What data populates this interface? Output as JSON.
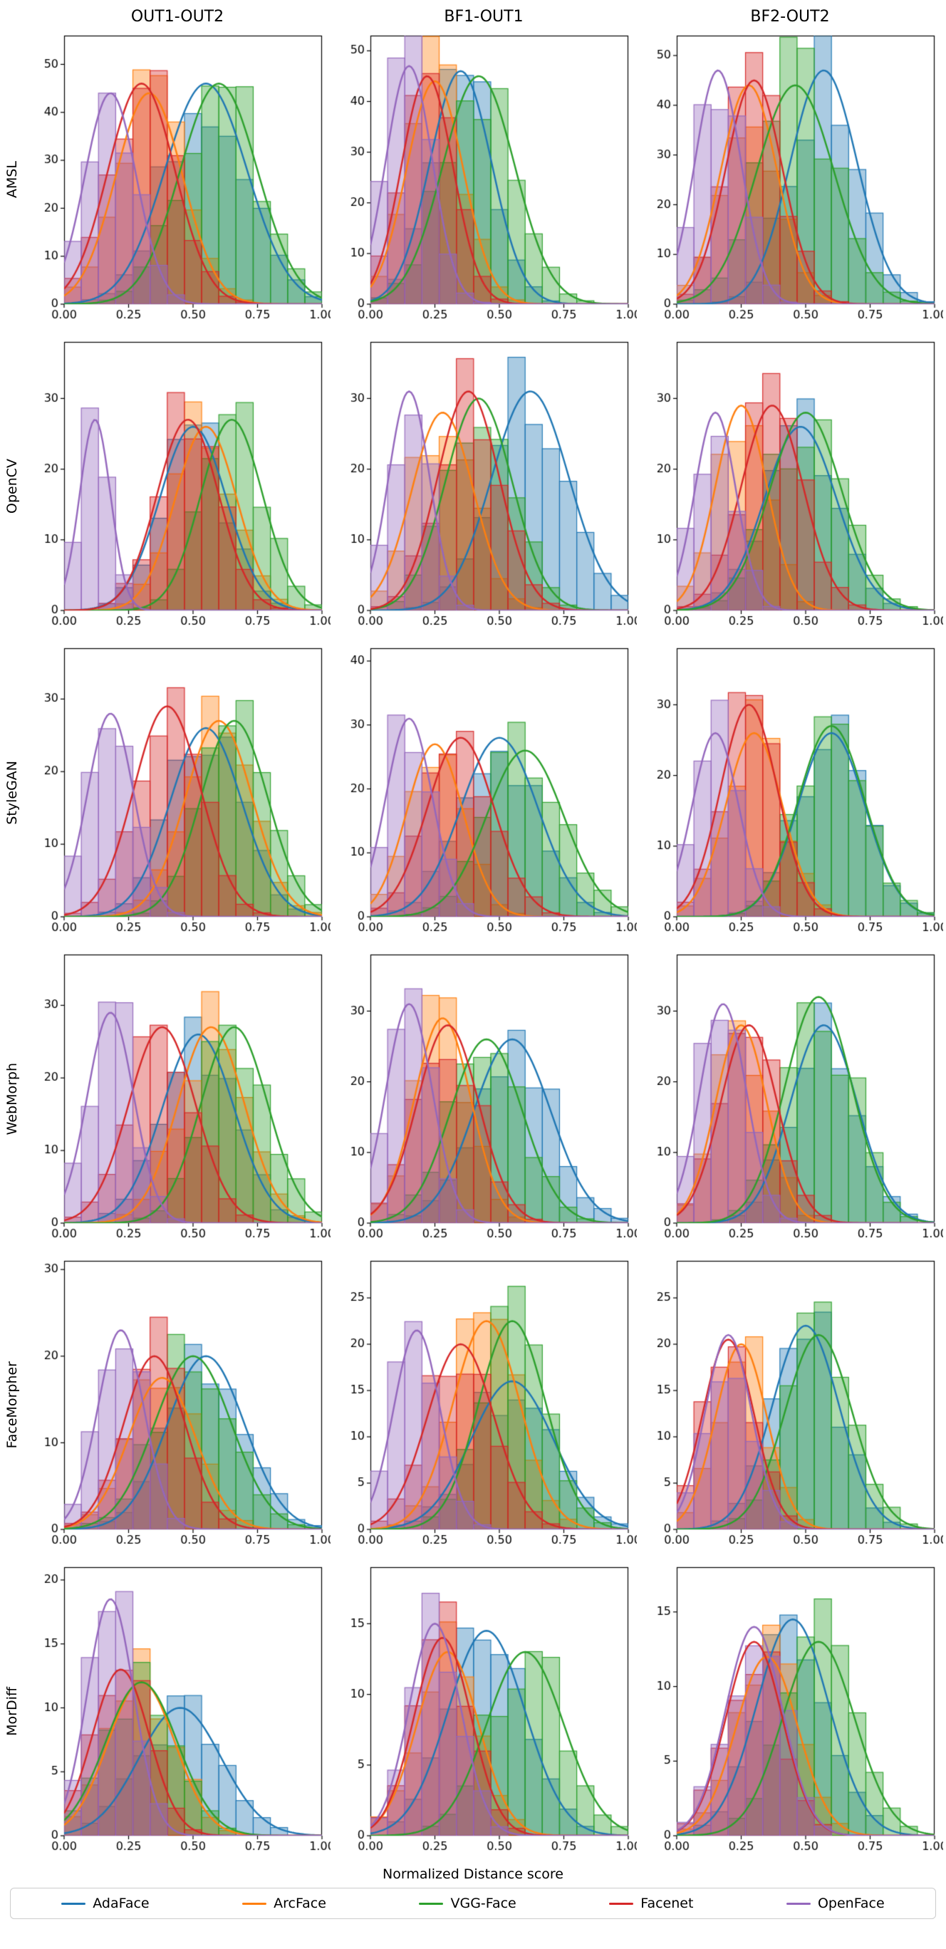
{
  "chart_data": {
    "type": "area",
    "description": "6x3 grid of overlaid histograms with KDE curves comparing face-recognition distance-score distributions",
    "columns": [
      "OUT1-OUT2",
      "BF1-OUT1",
      "BF2-OUT2"
    ],
    "rows": [
      "AMSL",
      "OpenCV",
      "StyleGAN",
      "WebMorph",
      "FaceMorpher",
      "MorDiff"
    ],
    "xlabel": "Normalized Distance score",
    "xticks": [
      "0.00",
      "0.25",
      "0.50",
      "0.75",
      "1.00"
    ],
    "xlim": [
      0,
      1
    ],
    "legend_position": "bottom",
    "legend": [
      {
        "name": "AdaFace",
        "color": "#1f77b4"
      },
      {
        "name": "ArcFace",
        "color": "#ff7f0e"
      },
      {
        "name": "VGG-Face",
        "color": "#2ca02c"
      },
      {
        "name": "Facenet",
        "color": "#d62728"
      },
      {
        "name": "OpenFace",
        "color": "#9467bd"
      }
    ],
    "plots": [
      {
        "row": "AMSL",
        "col": "OUT1-OUT2",
        "ymax": 56,
        "yticks": [
          0,
          10,
          20,
          30,
          40,
          50
        ],
        "series": [
          {
            "name": "AdaFace",
            "mean": 0.55,
            "sd": 0.16,
            "peak": 46
          },
          {
            "name": "ArcFace",
            "mean": 0.33,
            "sd": 0.13,
            "peak": 44
          },
          {
            "name": "VGG-Face",
            "mean": 0.6,
            "sd": 0.15,
            "peak": 46
          },
          {
            "name": "Facenet",
            "mean": 0.3,
            "sd": 0.13,
            "peak": 46
          },
          {
            "name": "OpenFace",
            "mean": 0.18,
            "sd": 0.1,
            "peak": 44
          }
        ]
      },
      {
        "row": "AMSL",
        "col": "BF1-OUT1",
        "ymax": 53,
        "yticks": [
          0,
          10,
          20,
          30,
          40,
          50
        ],
        "series": [
          {
            "name": "AdaFace",
            "mean": 0.35,
            "sd": 0.12,
            "peak": 46
          },
          {
            "name": "ArcFace",
            "mean": 0.25,
            "sd": 0.11,
            "peak": 44
          },
          {
            "name": "VGG-Face",
            "mean": 0.42,
            "sd": 0.14,
            "peak": 45
          },
          {
            "name": "Facenet",
            "mean": 0.22,
            "sd": 0.1,
            "peak": 45
          },
          {
            "name": "OpenFace",
            "mean": 0.15,
            "sd": 0.09,
            "peak": 47
          }
        ]
      },
      {
        "row": "AMSL",
        "col": "BF2-OUT2",
        "ymax": 54,
        "yticks": [
          0,
          10,
          20,
          30,
          40,
          50
        ],
        "series": [
          {
            "name": "AdaFace",
            "mean": 0.57,
            "sd": 0.13,
            "peak": 47
          },
          {
            "name": "ArcFace",
            "mean": 0.28,
            "sd": 0.11,
            "peak": 44
          },
          {
            "name": "VGG-Face",
            "mean": 0.46,
            "sd": 0.15,
            "peak": 44
          },
          {
            "name": "Facenet",
            "mean": 0.3,
            "sd": 0.11,
            "peak": 45
          },
          {
            "name": "OpenFace",
            "mean": 0.16,
            "sd": 0.09,
            "peak": 47
          }
        ]
      },
      {
        "row": "OpenCV",
        "col": "OUT1-OUT2",
        "ymax": 38,
        "yticks": [
          0,
          10,
          20,
          30
        ],
        "series": [
          {
            "name": "AdaFace",
            "mean": 0.5,
            "sd": 0.13,
            "peak": 26
          },
          {
            "name": "ArcFace",
            "mean": 0.55,
            "sd": 0.12,
            "peak": 26
          },
          {
            "name": "VGG-Face",
            "mean": 0.65,
            "sd": 0.12,
            "peak": 27
          },
          {
            "name": "Facenet",
            "mean": 0.48,
            "sd": 0.12,
            "peak": 27
          },
          {
            "name": "OpenFace",
            "mean": 0.12,
            "sd": 0.06,
            "peak": 27
          }
        ]
      },
      {
        "row": "OpenCV",
        "col": "BF1-OUT1",
        "ymax": 38,
        "yticks": [
          0,
          10,
          20,
          30
        ],
        "series": [
          {
            "name": "AdaFace",
            "mean": 0.62,
            "sd": 0.15,
            "peak": 31
          },
          {
            "name": "ArcFace",
            "mean": 0.28,
            "sd": 0.12,
            "peak": 28
          },
          {
            "name": "VGG-Face",
            "mean": 0.42,
            "sd": 0.13,
            "peak": 30
          },
          {
            "name": "Facenet",
            "mean": 0.38,
            "sd": 0.12,
            "peak": 31
          },
          {
            "name": "OpenFace",
            "mean": 0.15,
            "sd": 0.08,
            "peak": 31
          }
        ]
      },
      {
        "row": "OpenCV",
        "col": "BF2-OUT2",
        "ymax": 38,
        "yticks": [
          0,
          10,
          20,
          30
        ],
        "series": [
          {
            "name": "AdaFace",
            "mean": 0.48,
            "sd": 0.14,
            "peak": 26
          },
          {
            "name": "ArcFace",
            "mean": 0.25,
            "sd": 0.1,
            "peak": 29
          },
          {
            "name": "VGG-Face",
            "mean": 0.5,
            "sd": 0.14,
            "peak": 28
          },
          {
            "name": "Facenet",
            "mean": 0.37,
            "sd": 0.12,
            "peak": 29
          },
          {
            "name": "OpenFace",
            "mean": 0.15,
            "sd": 0.08,
            "peak": 28
          }
        ]
      },
      {
        "row": "StyleGAN",
        "col": "OUT1-OUT2",
        "ymax": 37,
        "yticks": [
          0,
          10,
          20,
          30
        ],
        "series": [
          {
            "name": "AdaFace",
            "mean": 0.55,
            "sd": 0.14,
            "peak": 26
          },
          {
            "name": "ArcFace",
            "mean": 0.6,
            "sd": 0.13,
            "peak": 27
          },
          {
            "name": "VGG-Face",
            "mean": 0.66,
            "sd": 0.13,
            "peak": 27
          },
          {
            "name": "Facenet",
            "mean": 0.4,
            "sd": 0.13,
            "peak": 29
          },
          {
            "name": "OpenFace",
            "mean": 0.18,
            "sd": 0.09,
            "peak": 28
          }
        ]
      },
      {
        "row": "StyleGAN",
        "col": "BF1-OUT1",
        "ymax": 42,
        "yticks": [
          0,
          10,
          20,
          30,
          40
        ],
        "series": [
          {
            "name": "AdaFace",
            "mean": 0.5,
            "sd": 0.15,
            "peak": 28
          },
          {
            "name": "ArcFace",
            "mean": 0.25,
            "sd": 0.11,
            "peak": 27
          },
          {
            "name": "VGG-Face",
            "mean": 0.6,
            "sd": 0.15,
            "peak": 26
          },
          {
            "name": "Facenet",
            "mean": 0.35,
            "sd": 0.13,
            "peak": 28
          },
          {
            "name": "OpenFace",
            "mean": 0.15,
            "sd": 0.09,
            "peak": 31
          }
        ]
      },
      {
        "row": "StyleGAN",
        "col": "BF2-OUT2",
        "ymax": 38,
        "yticks": [
          0,
          10,
          20,
          30
        ],
        "series": [
          {
            "name": "AdaFace",
            "mean": 0.6,
            "sd": 0.13,
            "peak": 26
          },
          {
            "name": "ArcFace",
            "mean": 0.3,
            "sd": 0.11,
            "peak": 26
          },
          {
            "name": "VGG-Face",
            "mean": 0.6,
            "sd": 0.13,
            "peak": 27
          },
          {
            "name": "Facenet",
            "mean": 0.28,
            "sd": 0.11,
            "peak": 30
          },
          {
            "name": "OpenFace",
            "mean": 0.15,
            "sd": 0.09,
            "peak": 26
          }
        ]
      },
      {
        "row": "WebMorph",
        "col": "OUT1-OUT2",
        "ymax": 37,
        "yticks": [
          0,
          10,
          20,
          30
        ],
        "series": [
          {
            "name": "AdaFace",
            "mean": 0.52,
            "sd": 0.14,
            "peak": 26
          },
          {
            "name": "ArcFace",
            "mean": 0.57,
            "sd": 0.13,
            "peak": 27
          },
          {
            "name": "VGG-Face",
            "mean": 0.66,
            "sd": 0.13,
            "peak": 27
          },
          {
            "name": "Facenet",
            "mean": 0.38,
            "sd": 0.13,
            "peak": 27
          },
          {
            "name": "OpenFace",
            "mean": 0.18,
            "sd": 0.09,
            "peak": 29
          }
        ]
      },
      {
        "row": "WebMorph",
        "col": "BF1-OUT1",
        "ymax": 38,
        "yticks": [
          0,
          10,
          20,
          30
        ],
        "series": [
          {
            "name": "AdaFace",
            "mean": 0.55,
            "sd": 0.15,
            "peak": 26
          },
          {
            "name": "ArcFace",
            "mean": 0.28,
            "sd": 0.11,
            "peak": 29
          },
          {
            "name": "VGG-Face",
            "mean": 0.45,
            "sd": 0.14,
            "peak": 26
          },
          {
            "name": "Facenet",
            "mean": 0.3,
            "sd": 0.12,
            "peak": 28
          },
          {
            "name": "OpenFace",
            "mean": 0.15,
            "sd": 0.09,
            "peak": 31
          }
        ]
      },
      {
        "row": "WebMorph",
        "col": "BF2-OUT2",
        "ymax": 38,
        "yticks": [
          0,
          10,
          20,
          30
        ],
        "series": [
          {
            "name": "AdaFace",
            "mean": 0.57,
            "sd": 0.13,
            "peak": 28
          },
          {
            "name": "ArcFace",
            "mean": 0.25,
            "sd": 0.1,
            "peak": 28
          },
          {
            "name": "VGG-Face",
            "mean": 0.55,
            "sd": 0.13,
            "peak": 32
          },
          {
            "name": "Facenet",
            "mean": 0.28,
            "sd": 0.11,
            "peak": 28
          },
          {
            "name": "OpenFace",
            "mean": 0.18,
            "sd": 0.09,
            "peak": 31
          }
        ]
      },
      {
        "row": "FaceMorpher",
        "col": "OUT1-OUT2",
        "ymax": 31,
        "yticks": [
          0,
          10,
          20,
          30
        ],
        "series": [
          {
            "name": "AdaFace",
            "mean": 0.55,
            "sd": 0.15,
            "peak": 20
          },
          {
            "name": "ArcFace",
            "mean": 0.38,
            "sd": 0.13,
            "peak": 17.5
          },
          {
            "name": "VGG-Face",
            "mean": 0.5,
            "sd": 0.15,
            "peak": 20
          },
          {
            "name": "Facenet",
            "mean": 0.35,
            "sd": 0.12,
            "peak": 20
          },
          {
            "name": "OpenFace",
            "mean": 0.22,
            "sd": 0.09,
            "peak": 23
          }
        ]
      },
      {
        "row": "FaceMorpher",
        "col": "BF1-OUT1",
        "ymax": 29,
        "yticks": [
          0,
          5,
          10,
          15,
          20,
          25
        ],
        "series": [
          {
            "name": "AdaFace",
            "mean": 0.55,
            "sd": 0.16,
            "peak": 16
          },
          {
            "name": "ArcFace",
            "mean": 0.45,
            "sd": 0.13,
            "peak": 22.5
          },
          {
            "name": "VGG-Face",
            "mean": 0.55,
            "sd": 0.13,
            "peak": 22.5
          },
          {
            "name": "Facenet",
            "mean": 0.35,
            "sd": 0.13,
            "peak": 20
          },
          {
            "name": "OpenFace",
            "mean": 0.18,
            "sd": 0.09,
            "peak": 21.5
          }
        ]
      },
      {
        "row": "FaceMorpher",
        "col": "BF2-OUT2",
        "ymax": 29,
        "yticks": [
          0,
          5,
          10,
          15,
          20,
          25
        ],
        "series": [
          {
            "name": "AdaFace",
            "mean": 0.5,
            "sd": 0.13,
            "peak": 22
          },
          {
            "name": "ArcFace",
            "mean": 0.25,
            "sd": 0.1,
            "peak": 20
          },
          {
            "name": "VGG-Face",
            "mean": 0.55,
            "sd": 0.13,
            "peak": 21
          },
          {
            "name": "Facenet",
            "mean": 0.2,
            "sd": 0.1,
            "peak": 20.5
          },
          {
            "name": "OpenFace",
            "mean": 0.2,
            "sd": 0.09,
            "peak": 21
          }
        ]
      },
      {
        "row": "MorDiff",
        "col": "OUT1-OUT2",
        "ymax": 21,
        "yticks": [
          0,
          5,
          10,
          15,
          20
        ],
        "series": [
          {
            "name": "AdaFace",
            "mean": 0.45,
            "sd": 0.16,
            "peak": 10
          },
          {
            "name": "ArcFace",
            "mean": 0.3,
            "sd": 0.13,
            "peak": 12
          },
          {
            "name": "VGG-Face",
            "mean": 0.3,
            "sd": 0.14,
            "peak": 12
          },
          {
            "name": "Facenet",
            "mean": 0.22,
            "sd": 0.11,
            "peak": 13
          },
          {
            "name": "OpenFace",
            "mean": 0.18,
            "sd": 0.09,
            "peak": 18.5
          }
        ]
      },
      {
        "row": "MorDiff",
        "col": "BF1-OUT1",
        "ymax": 19,
        "yticks": [
          0,
          5,
          10,
          15
        ],
        "series": [
          {
            "name": "AdaFace",
            "mean": 0.45,
            "sd": 0.15,
            "peak": 14.5
          },
          {
            "name": "ArcFace",
            "mean": 0.3,
            "sd": 0.12,
            "peak": 13
          },
          {
            "name": "VGG-Face",
            "mean": 0.6,
            "sd": 0.15,
            "peak": 13
          },
          {
            "name": "Facenet",
            "mean": 0.28,
            "sd": 0.11,
            "peak": 14
          },
          {
            "name": "OpenFace",
            "mean": 0.25,
            "sd": 0.1,
            "peak": 15
          }
        ]
      },
      {
        "row": "MorDiff",
        "col": "BF2-OUT2",
        "ymax": 18,
        "yticks": [
          0,
          5,
          10,
          15
        ],
        "series": [
          {
            "name": "AdaFace",
            "mean": 0.45,
            "sd": 0.14,
            "peak": 14.5
          },
          {
            "name": "ArcFace",
            "mean": 0.35,
            "sd": 0.12,
            "peak": 12
          },
          {
            "name": "VGG-Face",
            "mean": 0.55,
            "sd": 0.14,
            "peak": 13
          },
          {
            "name": "Facenet",
            "mean": 0.3,
            "sd": 0.11,
            "peak": 13
          },
          {
            "name": "OpenFace",
            "mean": 0.3,
            "sd": 0.11,
            "peak": 14
          }
        ]
      }
    ]
  }
}
